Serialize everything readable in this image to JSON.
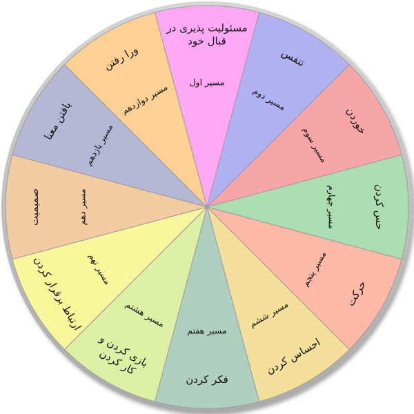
{
  "wheel": {
    "segments": [
      {
        "label_lines": [
          "مسئولیت پذیری در",
          "قبال خود"
        ],
        "path_label": "مسیر اول",
        "color": "#FFA9F6"
      },
      {
        "label_lines": [
          "تنفس"
        ],
        "path_label": "مسیر دوم",
        "color": "#B1B0F1"
      },
      {
        "label_lines": [
          "خوردن"
        ],
        "path_label": "مسیر سوم",
        "color": "#F7A6A8"
      },
      {
        "label_lines": [
          "حس کردن"
        ],
        "path_label": "مسیر چهارم",
        "color": "#ABDDB0"
      },
      {
        "label_lines": [
          "حرکت"
        ],
        "path_label": "مسیر پنجم",
        "color": "#FDB9A8"
      },
      {
        "label_lines": [
          "احساس کردن"
        ],
        "path_label": "مسیر ششم",
        "color": "#F3DF9B"
      },
      {
        "label_lines": [
          "فکر کردن"
        ],
        "path_label": "مسیر هفتم",
        "color": "#AECFC0"
      },
      {
        "label_lines": [
          "بازی کردن و",
          "کار کردن"
        ],
        "path_label": "مسیر هشتم",
        "color": "#DDEFA4"
      },
      {
        "label_lines": [
          "ارتباط برقرار کردن"
        ],
        "path_label": "مسیر نهم",
        "color": "#F8F69A"
      },
      {
        "label_lines": [
          "صمیمیت"
        ],
        "path_label": "مسیر دهم",
        "color": "#F2CBA0"
      },
      {
        "label_lines": [
          "یافتن معنا"
        ],
        "path_label": "مسیر یازدهم",
        "color": "#B4B6D4"
      },
      {
        "label_lines": [
          "ورا رفتن"
        ],
        "path_label": "مسیر دوازدهم",
        "color": "#FED093"
      }
    ],
    "rim_color": "#BFBFBF"
  }
}
